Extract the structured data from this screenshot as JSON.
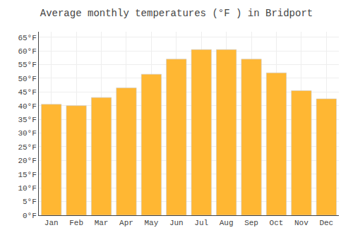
{
  "chart_data": {
    "type": "bar",
    "title": "Average monthly temperatures (°F ) in Bridport",
    "categories": [
      "Jan",
      "Feb",
      "Mar",
      "Apr",
      "May",
      "Jun",
      "Jul",
      "Aug",
      "Sep",
      "Oct",
      "Nov",
      "Dec"
    ],
    "values": [
      40.5,
      40.0,
      43.0,
      46.5,
      51.5,
      57.0,
      60.5,
      60.5,
      57.0,
      52.0,
      45.5,
      42.5
    ],
    "color": "#FFB733",
    "ylim": [
      0,
      67
    ],
    "yticks": [
      {
        "value": 0,
        "label": "0°F"
      },
      {
        "value": 5,
        "label": "5°F"
      },
      {
        "value": 10,
        "label": "10°F"
      },
      {
        "value": 15,
        "label": "15°F"
      },
      {
        "value": 20,
        "label": "20°F"
      },
      {
        "value": 25,
        "label": "25°F"
      },
      {
        "value": 30,
        "label": "30°F"
      },
      {
        "value": 35,
        "label": "35°F"
      },
      {
        "value": 40,
        "label": "40°F"
      },
      {
        "value": 45,
        "label": "45°F"
      },
      {
        "value": 50,
        "label": "50°F"
      },
      {
        "value": 55,
        "label": "55°F"
      },
      {
        "value": 60,
        "label": "60°F"
      },
      {
        "value": 65,
        "label": "65°F"
      }
    ],
    "grid": true
  }
}
